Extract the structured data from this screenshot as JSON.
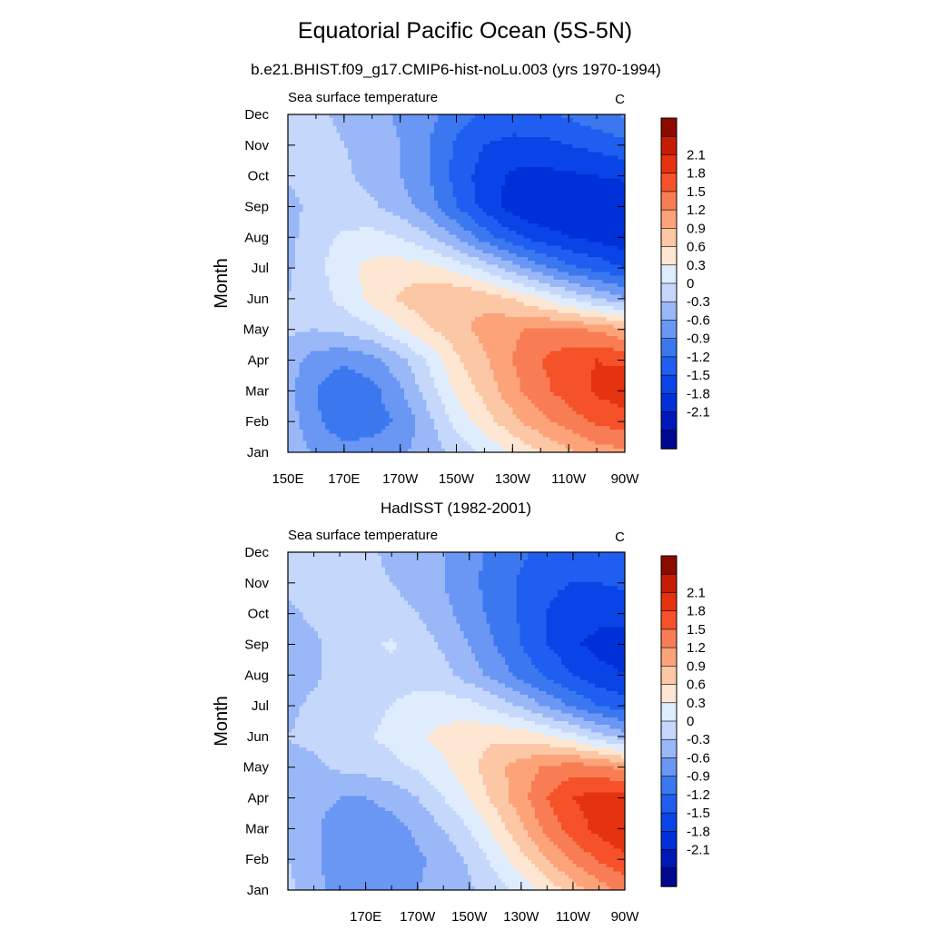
{
  "title": "Equatorial Pacific Ocean (5S-5N)",
  "chart_data": [
    {
      "type": "heatmap",
      "title": "b.e21.BHIST.f09_g17.CMIP6-hist-noLu.003 (yrs 1970-1994)",
      "left_label": "Sea surface temperature",
      "right_label": "C",
      "ylabel": "Month",
      "xlabel": "",
      "x": [
        150,
        160,
        170,
        180,
        190,
        200,
        210,
        220,
        230,
        240,
        250,
        260,
        270
      ],
      "x_tick_labels": [
        "150E",
        "170E",
        "170W",
        "150W",
        "130W",
        "110W",
        "90W"
      ],
      "x_tick_values": [
        150,
        170,
        190,
        210,
        230,
        250,
        270
      ],
      "y": [
        "Jan",
        "Feb",
        "Mar",
        "Apr",
        "May",
        "Jun",
        "Jul",
        "Aug",
        "Sep",
        "Oct",
        "Nov",
        "Dec"
      ],
      "z": [
        [
          -0.1,
          -0.35,
          -0.5,
          -0.45,
          -0.35,
          -0.15,
          0.1,
          0.35,
          0.65,
          0.9,
          1.15,
          1.35,
          1.45
        ],
        [
          -0.15,
          -0.55,
          -0.8,
          -0.75,
          -0.55,
          -0.1,
          0.4,
          0.75,
          1.1,
          1.4,
          1.65,
          1.85,
          1.95
        ],
        [
          -0.2,
          -0.6,
          -0.85,
          -0.7,
          -0.35,
          0.15,
          0.65,
          1.0,
          1.4,
          1.7,
          1.95,
          2.15,
          2.3
        ],
        [
          -0.15,
          -0.45,
          -0.55,
          -0.4,
          -0.1,
          0.35,
          0.85,
          1.15,
          1.5,
          1.8,
          2.0,
          2.1,
          2.05
        ],
        [
          0.05,
          0.0,
          0.1,
          0.25,
          0.55,
          0.85,
          1.1,
          1.3,
          1.45,
          1.55,
          1.55,
          1.45,
          1.25
        ],
        [
          0.0,
          0.15,
          0.4,
          0.7,
          0.95,
          1.15,
          1.2,
          1.1,
          0.9,
          0.6,
          0.3,
          0.0,
          -0.25
        ],
        [
          -0.05,
          0.2,
          0.5,
          0.7,
          0.75,
          0.7,
          0.5,
          0.2,
          -0.15,
          -0.5,
          -0.8,
          -1.0,
          -1.2
        ],
        [
          -0.1,
          0.2,
          0.35,
          0.4,
          0.3,
          0.05,
          -0.3,
          -0.75,
          -1.1,
          -1.35,
          -1.5,
          -1.6,
          -1.7
        ],
        [
          -0.1,
          0.1,
          0.15,
          0.05,
          -0.15,
          -0.45,
          -0.9,
          -1.3,
          -1.65,
          -1.8,
          -1.75,
          -1.75,
          -1.75
        ],
        [
          0.05,
          0.1,
          0.05,
          -0.1,
          -0.3,
          -0.6,
          -1.0,
          -1.35,
          -1.55,
          -1.6,
          -1.55,
          -1.5,
          -1.45
        ],
        [
          0.1,
          0.1,
          0.0,
          -0.1,
          -0.3,
          -0.6,
          -0.95,
          -1.2,
          -1.3,
          -1.3,
          -1.2,
          -1.1,
          -1.0
        ],
        [
          0.1,
          0.05,
          -0.05,
          -0.2,
          -0.35,
          -0.5,
          -0.75,
          -0.95,
          -1.0,
          -0.95,
          -0.85,
          -0.7,
          -0.55
        ]
      ],
      "colorbar_labels": [
        "2.1",
        "1.8",
        "1.5",
        "1.2",
        "0.9",
        "0.6",
        "0.3",
        "0",
        "-0.3",
        "-0.6",
        "-0.9",
        "-1.2",
        "-1.5",
        "-1.8",
        "-2.1"
      ],
      "levels": [
        -2.1,
        -1.8,
        -1.5,
        -1.2,
        -0.9,
        -0.6,
        -0.3,
        0,
        0.3,
        0.6,
        0.9,
        1.2,
        1.5,
        1.8,
        2.1
      ],
      "colors": [
        "#000890",
        "#0018b8",
        "#0030d8",
        "#0a44e6",
        "#1f5ef0",
        "#3b78f0",
        "#6a96f4",
        "#9ab8f8",
        "#c5d8fb",
        "#deecfd",
        "#fde6d2",
        "#fcc7a5",
        "#fca37a",
        "#f87d54",
        "#f5522a",
        "#e6330f",
        "#c41d06",
        "#8c0a00"
      ]
    },
    {
      "type": "heatmap",
      "title": "HadISST (1982-2001)",
      "left_label": "Sea surface temperature",
      "right_label": "C",
      "ylabel": "Month",
      "xlabel": "",
      "x": [
        140,
        150,
        160,
        170,
        180,
        190,
        200,
        210,
        220,
        230,
        240,
        250,
        260,
        270
      ],
      "x_tick_labels": [
        "170E",
        "170W",
        "150W",
        "130W",
        "110W",
        "90W"
      ],
      "x_tick_values": [
        170,
        190,
        210,
        230,
        250,
        270
      ],
      "y": [
        "Jan",
        "Feb",
        "Mar",
        "Apr",
        "May",
        "Jun",
        "Jul",
        "Aug",
        "Sep",
        "Oct",
        "Nov",
        "Dec"
      ],
      "z": [
        [
          0.1,
          -0.2,
          -0.4,
          -0.45,
          -0.4,
          -0.3,
          -0.2,
          -0.05,
          0.15,
          0.4,
          0.7,
          1.05,
          1.35,
          1.6
        ],
        [
          0.0,
          -0.25,
          -0.45,
          -0.5,
          -0.45,
          -0.35,
          -0.2,
          0.05,
          0.4,
          0.8,
          1.2,
          1.55,
          1.85,
          2.05
        ],
        [
          -0.05,
          -0.25,
          -0.45,
          -0.5,
          -0.4,
          -0.25,
          0.0,
          0.3,
          0.7,
          1.15,
          1.6,
          1.95,
          2.2,
          2.35
        ],
        [
          -0.1,
          -0.2,
          -0.3,
          -0.3,
          -0.2,
          0.0,
          0.3,
          0.6,
          1.0,
          1.4,
          1.8,
          2.1,
          2.25,
          2.2
        ],
        [
          -0.05,
          -0.05,
          0.05,
          0.1,
          0.2,
          0.35,
          0.55,
          0.8,
          1.1,
          1.35,
          1.55,
          1.65,
          1.6,
          1.4
        ],
        [
          0.0,
          0.05,
          0.15,
          0.25,
          0.4,
          0.55,
          0.7,
          0.8,
          0.85,
          0.8,
          0.65,
          0.4,
          0.1,
          -0.15
        ],
        [
          -0.05,
          0.05,
          0.1,
          0.2,
          0.3,
          0.4,
          0.45,
          0.4,
          0.2,
          -0.05,
          -0.35,
          -0.65,
          -0.9,
          -1.05
        ],
        [
          -0.15,
          -0.05,
          0.1,
          0.15,
          0.2,
          0.2,
          0.1,
          -0.15,
          -0.4,
          -0.7,
          -0.95,
          -1.2,
          -1.4,
          -1.5
        ],
        [
          -0.15,
          -0.05,
          0.1,
          0.2,
          0.35,
          0.15,
          -0.05,
          -0.3,
          -0.6,
          -0.9,
          -1.2,
          -1.45,
          -1.6,
          -1.65
        ],
        [
          -0.05,
          0.05,
          0.1,
          0.15,
          0.1,
          0.0,
          -0.2,
          -0.45,
          -0.7,
          -0.95,
          -1.2,
          -1.35,
          -1.4,
          -1.4
        ],
        [
          0.05,
          0.1,
          0.1,
          0.05,
          0.0,
          -0.1,
          -0.3,
          -0.5,
          -0.75,
          -0.95,
          -1.15,
          -1.2,
          -1.2,
          -1.15
        ],
        [
          0.1,
          0.1,
          0.1,
          0.05,
          -0.05,
          -0.15,
          -0.3,
          -0.5,
          -0.7,
          -0.85,
          -1.0,
          -1.05,
          -1.05,
          -1.0
        ]
      ],
      "colorbar_labels": [
        "2.1",
        "1.8",
        "1.5",
        "1.2",
        "0.9",
        "0.6",
        "0.3",
        "0",
        "-0.3",
        "-0.6",
        "-0.9",
        "-1.2",
        "-1.5",
        "-1.8",
        "-2.1"
      ],
      "levels": [
        -2.1,
        -1.8,
        -1.5,
        -1.2,
        -0.9,
        -0.6,
        -0.3,
        0,
        0.3,
        0.6,
        0.9,
        1.2,
        1.5,
        1.8,
        2.1
      ],
      "colors": [
        "#000890",
        "#0018b8",
        "#0030d8",
        "#0a44e6",
        "#1f5ef0",
        "#3b78f0",
        "#6a96f4",
        "#9ab8f8",
        "#c5d8fb",
        "#deecfd",
        "#fde6d2",
        "#fcc7a5",
        "#fca37a",
        "#f87d54",
        "#f5522a",
        "#e6330f",
        "#c41d06",
        "#8c0a00"
      ]
    }
  ]
}
